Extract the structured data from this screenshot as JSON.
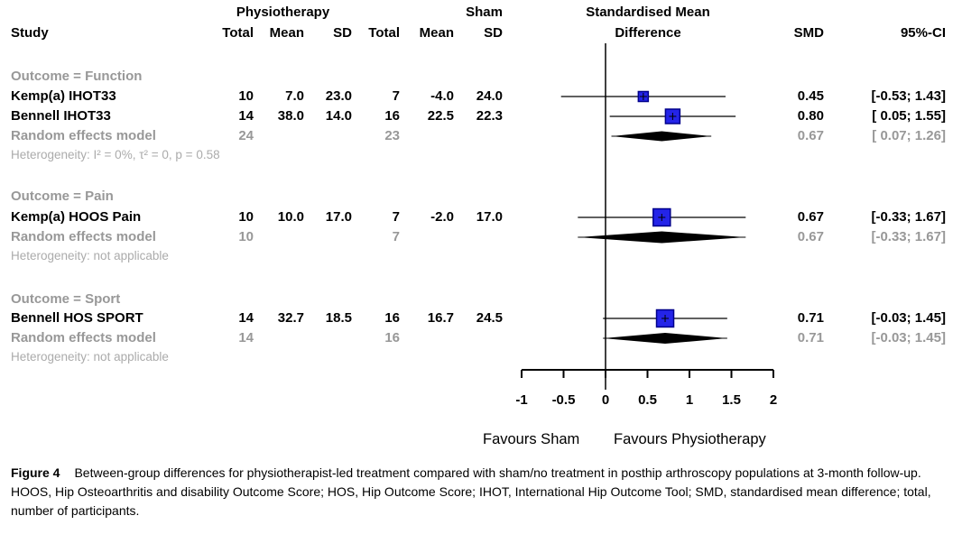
{
  "header": {
    "physio_group": "Physiotherapy",
    "sham_group": "Sham",
    "smd_header_line1": "Standardised Mean",
    "smd_header_line2": "Difference",
    "study_col": "Study",
    "total_col": "Total",
    "mean_col": "Mean",
    "sd_col": "SD",
    "smd_col": "SMD",
    "ci_col": "95%-CI"
  },
  "sections": [
    {
      "title": "Outcome = Function",
      "rows": [
        {
          "study": "Kemp(a) IHOT33",
          "t1": "10",
          "m1": "7.0",
          "s1": "23.0",
          "t2": "7",
          "m2": "-4.0",
          "s2": "24.0",
          "smd": "0.45",
          "ci": "[-0.53; 1.43]"
        },
        {
          "study": "Bennell IHOT33",
          "t1": "14",
          "m1": "38.0",
          "s1": "14.0",
          "t2": "16",
          "m2": "22.5",
          "s2": "22.3",
          "smd": "0.80",
          "ci": "[ 0.05; 1.55]"
        }
      ],
      "pooled": {
        "study": "Random effects model",
        "t1": "24",
        "t2": "23",
        "smd": "0.67",
        "ci": "[ 0.07; 1.26]"
      },
      "heterogeneity": "Heterogeneity: I² = 0%, τ² = 0, p = 0.58"
    },
    {
      "title": "Outcome = Pain",
      "rows": [
        {
          "study": "Kemp(a) HOOS Pain",
          "t1": "10",
          "m1": "10.0",
          "s1": "17.0",
          "t2": "7",
          "m2": "-2.0",
          "s2": "17.0",
          "smd": "0.67",
          "ci": "[-0.33; 1.67]"
        }
      ],
      "pooled": {
        "study": "Random effects model",
        "t1": "10",
        "t2": "7",
        "smd": "0.67",
        "ci": "[-0.33; 1.67]"
      },
      "heterogeneity": "Heterogeneity: not applicable"
    },
    {
      "title": "Outcome = Sport",
      "rows": [
        {
          "study": "Bennell HOS SPORT",
          "t1": "14",
          "m1": "32.7",
          "s1": "18.5",
          "t2": "16",
          "m2": "16.7",
          "s2": "24.5",
          "smd": "0.71",
          "ci": "[-0.03; 1.45]"
        }
      ],
      "pooled": {
        "study": "Random effects model",
        "t1": "14",
        "t2": "16",
        "smd": "0.71",
        "ci": "[-0.03; 1.45]"
      },
      "heterogeneity": "Heterogeneity: not applicable"
    }
  ],
  "axis": {
    "favours_left": "Favours Sham",
    "favours_right": "Favours Physiotherapy"
  },
  "caption": {
    "label": "Figure 4",
    "text": "Between-group differences for physiotherapist-led treatment compared with sham/no treatment in posthip arthroscopy populations at 3-month follow-up. HOOS, Hip Osteoarthritis and disability Outcome Score; HOS, Hip Outcome Score; IHOT, International Hip Outcome Tool; SMD, standardised mean difference; total, number of participants."
  },
  "colors": {
    "square_fill": "#2424e8",
    "square_border": "#00008b",
    "line": "#000000",
    "gray_header": "#989898",
    "gray_light": "#ababab"
  },
  "chart_data": {
    "type": "forest",
    "xlabel_left": "Favours Sham",
    "xlabel_right": "Favours Physiotherapy",
    "xlim": [
      -1,
      2
    ],
    "ticks": [
      -1,
      -0.5,
      0,
      0.5,
      1,
      1.5,
      2
    ],
    "tick_labels": [
      "-1",
      "-0.5",
      "0",
      "0.5",
      "1",
      "1.5",
      "2"
    ],
    "zero_line": 0,
    "groups": [
      {
        "label": "Outcome = Function",
        "studies": [
          {
            "name": "Kemp(a) IHOT33",
            "smd": 0.45,
            "lo": -0.53,
            "hi": 1.43,
            "py": 107,
            "size": 11
          },
          {
            "name": "Bennell IHOT33",
            "smd": 0.8,
            "lo": 0.05,
            "hi": 1.55,
            "py": 129,
            "size": 16
          }
        ],
        "pooled": {
          "name": "Random effects model",
          "smd": 0.67,
          "lo": 0.07,
          "hi": 1.26,
          "py": 151,
          "h": 11
        }
      },
      {
        "label": "Outcome = Pain",
        "studies": [
          {
            "name": "Kemp(a) HOOS Pain",
            "smd": 0.67,
            "lo": -0.33,
            "hi": 1.67,
            "py": 241,
            "size": 19
          }
        ],
        "pooled": {
          "name": "Random effects model",
          "smd": 0.67,
          "lo": -0.33,
          "hi": 1.67,
          "py": 263,
          "h": 13
        }
      },
      {
        "label": "Outcome = Sport",
        "studies": [
          {
            "name": "Bennell HOS SPORT",
            "smd": 0.71,
            "lo": -0.03,
            "hi": 1.45,
            "py": 353,
            "size": 19
          }
        ],
        "pooled": {
          "name": "Random effects model",
          "smd": 0.71,
          "lo": -0.03,
          "hi": 1.45,
          "py": 375,
          "h": 12
        }
      }
    ]
  }
}
